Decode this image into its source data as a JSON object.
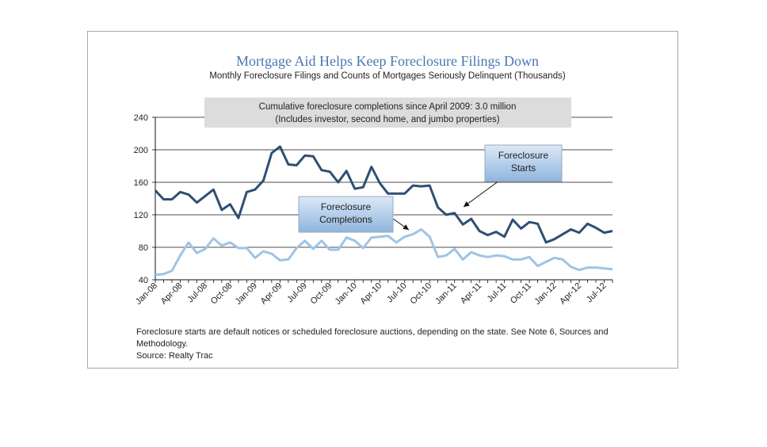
{
  "chart_data": {
    "type": "line",
    "title": "Mortgage Aid Helps Keep Foreclosure Filings Down",
    "subtitle": "Monthly Foreclosure Filings and Counts of Mortgages Seriously Delinquent (Thousands)",
    "ylim": [
      40,
      240
    ],
    "yticks": [
      40,
      80,
      120,
      160,
      200,
      240
    ],
    "xtick_labels": [
      "Jan-08",
      "Apr-08",
      "Jul-08",
      "Oct-08",
      "Jan-09",
      "Apr-09",
      "Jul-09",
      "Oct-09",
      "Jan-10",
      "Apr-10",
      "Jul-10",
      "Oct-10",
      "Jan-11",
      "Apr-11",
      "Jul-11",
      "Oct-11",
      "Jan-12",
      "Apr-12",
      "Jul-12"
    ],
    "xlabel": "",
    "ylabel": "",
    "grid": "horizontal",
    "banner": {
      "line1": "Cumulative foreclosure completions since April 2009: 3.0 million",
      "line2": "(Includes investor, second home, and jumbo properties)"
    },
    "series": [
      {
        "name": "Foreclosure Starts",
        "label_lines": [
          "Foreclosure",
          "Starts"
        ],
        "color": "#2f4f72",
        "values": [
          150,
          139,
          139,
          148,
          145,
          135,
          143,
          151,
          126,
          133,
          116,
          148,
          151,
          162,
          196,
          204,
          182,
          181,
          193,
          192,
          175,
          173,
          160,
          174,
          152,
          154,
          179,
          159,
          146,
          146,
          146,
          156,
          155,
          156,
          129,
          120,
          122,
          108,
          115,
          100,
          95,
          99,
          93,
          114,
          103,
          111,
          109,
          86,
          90,
          96,
          102,
          98,
          109,
          104,
          98,
          100
        ]
      },
      {
        "name": "Foreclosure Completions",
        "label_lines": [
          "Foreclosure",
          "Completions"
        ],
        "color": "#9ec4e6",
        "values": [
          46,
          47,
          51,
          70,
          86,
          73,
          78,
          91,
          82,
          86,
          79,
          79,
          67,
          75,
          72,
          64,
          65,
          79,
          88,
          78,
          88,
          77,
          77,
          92,
          88,
          79,
          92,
          93,
          94,
          86,
          93,
          96,
          102,
          93,
          68,
          70,
          78,
          65,
          74,
          70,
          68,
          70,
          69,
          65,
          65,
          68,
          57,
          62,
          67,
          65,
          56,
          52,
          55,
          55,
          54,
          53
        ]
      }
    ],
    "footnote": {
      "text": "Foreclosure starts are default notices or scheduled foreclosure auctions, depending on the state. See Note 6, Sources and Methodology.",
      "source": "Source: Realty Trac"
    }
  }
}
